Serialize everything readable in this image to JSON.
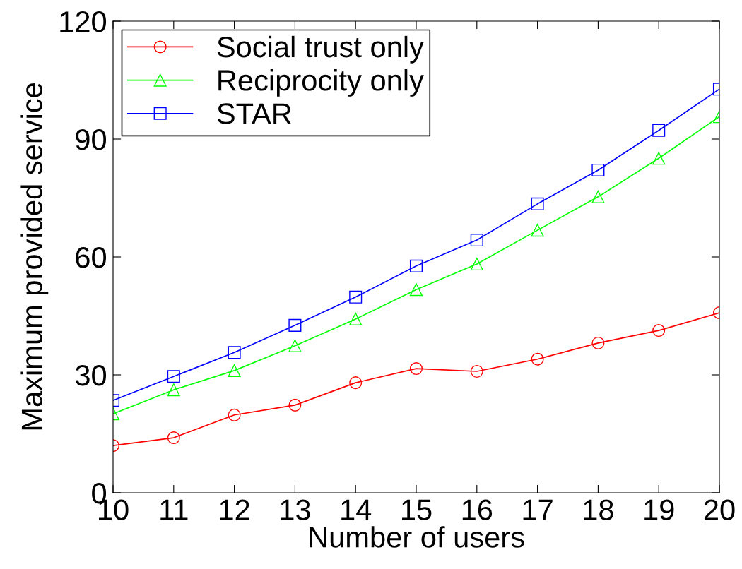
{
  "chart_data": {
    "type": "line",
    "xlabel": "Number of users",
    "ylabel": "Maximum provided service",
    "x": [
      10,
      11,
      12,
      13,
      14,
      15,
      16,
      17,
      18,
      19,
      20
    ],
    "xlim": [
      10,
      20
    ],
    "xticks": [
      10,
      11,
      12,
      13,
      14,
      15,
      16,
      17,
      18,
      19,
      20
    ],
    "ylim": [
      0,
      120
    ],
    "yticks": [
      0,
      30,
      60,
      90,
      120
    ],
    "grid": false,
    "legend": "top left",
    "line_style": "solid",
    "series": [
      {
        "name": "Social trust only",
        "color": "#ff0000",
        "marker": "circle",
        "values": [
          12.0,
          14.0,
          19.8,
          22.3,
          28.0,
          31.6,
          30.9,
          34.0,
          38.1,
          41.3,
          45.8
        ]
      },
      {
        "name": "Reciprocity only",
        "color": "#00ff00",
        "marker": "triangle",
        "values": [
          20.1,
          26.2,
          31.1,
          37.4,
          44.2,
          51.7,
          58.2,
          66.8,
          75.3,
          85.1,
          95.7
        ]
      },
      {
        "name": "STAR",
        "color": "#0000ff",
        "marker": "square",
        "values": [
          23.5,
          29.6,
          35.7,
          42.6,
          49.8,
          57.7,
          64.3,
          73.5,
          82.1,
          92.2,
          102.7
        ]
      }
    ]
  }
}
